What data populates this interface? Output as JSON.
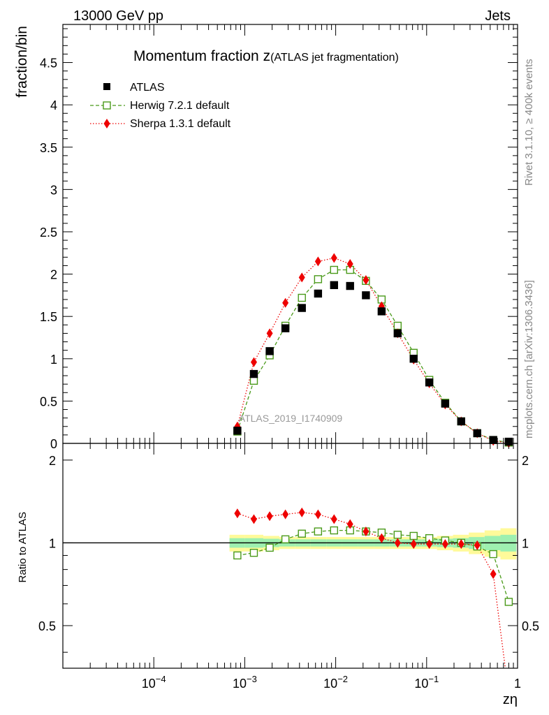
{
  "header": {
    "left": "13000 GeV pp",
    "right": "Jets",
    "side_top": "Rivet 3.1.10, ≥ 400k events",
    "side_bottom": "mcplots.cern.ch [arXiv:1306.3436]"
  },
  "chart_data": {
    "type": "scatter",
    "title_main": "Momentum fraction z",
    "title_sub": "(ATLAS jet fragmentation)",
    "watermark": "ATLAS_2019_I1740909",
    "xlabel": "zη",
    "x_scale": "log",
    "xlim": [
      1e-05,
      1
    ],
    "x_ticks": [
      {
        "v": 0.0001,
        "base": "10",
        "exp": "−4"
      },
      {
        "v": 0.001,
        "base": "10",
        "exp": "−3"
      },
      {
        "v": 0.01,
        "base": "10",
        "exp": "−2"
      },
      {
        "v": 0.1,
        "base": "10",
        "exp": "−1"
      },
      {
        "v": 1,
        "base": "1",
        "exp": ""
      }
    ],
    "main": {
      "ylabel": "fraction/bin",
      "ylim": [
        0,
        4.95
      ],
      "y_ticks": [
        "0",
        "0.5",
        "1",
        "1.5",
        "2",
        "2.5",
        "3",
        "3.5",
        "4",
        "4.5"
      ],
      "y_tick_values": [
        0,
        0.5,
        1,
        1.5,
        2,
        2.5,
        3,
        3.5,
        4,
        4.5
      ]
    },
    "ratio": {
      "ylabel": "Ratio to ATLAS",
      "ylim": [
        0.35,
        2.3
      ],
      "y_ticks": [
        "0.5",
        "1",
        "2"
      ],
      "y_tick_values": [
        0.5,
        1,
        2
      ],
      "band_inner": [
        0.04,
        0.04,
        0.035,
        0.03,
        0.03,
        0.03,
        0.03,
        0.03,
        0.03,
        0.03,
        0.03,
        0.03,
        0.03,
        0.035,
        0.04,
        0.05,
        0.06,
        0.07
      ],
      "band_outer": [
        0.07,
        0.07,
        0.06,
        0.05,
        0.05,
        0.05,
        0.05,
        0.05,
        0.05,
        0.05,
        0.05,
        0.05,
        0.05,
        0.06,
        0.07,
        0.09,
        0.11,
        0.13
      ]
    },
    "bin_edges": [
      0.00068,
      0.001,
      0.0016,
      0.0024,
      0.0036,
      0.0053,
      0.0079,
      0.0118,
      0.0176,
      0.0262,
      0.0392,
      0.0585,
      0.0873,
      0.13,
      0.195,
      0.291,
      0.434,
      0.648,
      0.97
    ],
    "x": [
      0.00083,
      0.00126,
      0.00188,
      0.0028,
      0.00425,
      0.0064,
      0.0096,
      0.0144,
      0.0215,
      0.032,
      0.048,
      0.072,
      0.107,
      0.16,
      0.24,
      0.36,
      0.54,
      0.8
    ],
    "series": [
      {
        "name": "ATLAS",
        "color": "#000000",
        "marker": "square-filled",
        "values": [
          0.15,
          0.82,
          1.09,
          1.36,
          1.6,
          1.77,
          1.87,
          1.86,
          1.75,
          1.56,
          1.3,
          1.0,
          0.72,
          0.47,
          0.26,
          0.12,
          0.04,
          0.02
        ]
      },
      {
        "name": "Herwig 7.2.1 default",
        "color": "#4a9a1a",
        "marker": "square-open",
        "line": "dashed",
        "values": [
          0.14,
          0.74,
          1.04,
          1.39,
          1.72,
          1.94,
          2.05,
          2.05,
          1.92,
          1.7,
          1.39,
          1.07,
          0.75,
          0.48,
          0.26,
          0.12,
          0.04,
          0.01
        ],
        "ratio": [
          0.9,
          0.92,
          0.96,
          1.03,
          1.08,
          1.1,
          1.11,
          1.11,
          1.1,
          1.09,
          1.07,
          1.06,
          1.04,
          1.02,
          1.0,
          0.97,
          0.91,
          0.61
        ]
      },
      {
        "name": "Sherpa 1.3.1 default",
        "color": "#ee0000",
        "marker": "diamond",
        "line": "dotted",
        "values": [
          0.2,
          0.96,
          1.3,
          1.66,
          1.96,
          2.15,
          2.19,
          2.12,
          1.93,
          1.62,
          1.3,
          0.99,
          0.71,
          0.46,
          0.26,
          0.12,
          0.03,
          0.005
        ],
        "ratio": [
          1.28,
          1.22,
          1.25,
          1.27,
          1.29,
          1.27,
          1.22,
          1.17,
          1.1,
          1.04,
          1.0,
          0.99,
          0.99,
          0.99,
          0.99,
          0.98,
          0.77,
          0.28
        ]
      }
    ]
  }
}
